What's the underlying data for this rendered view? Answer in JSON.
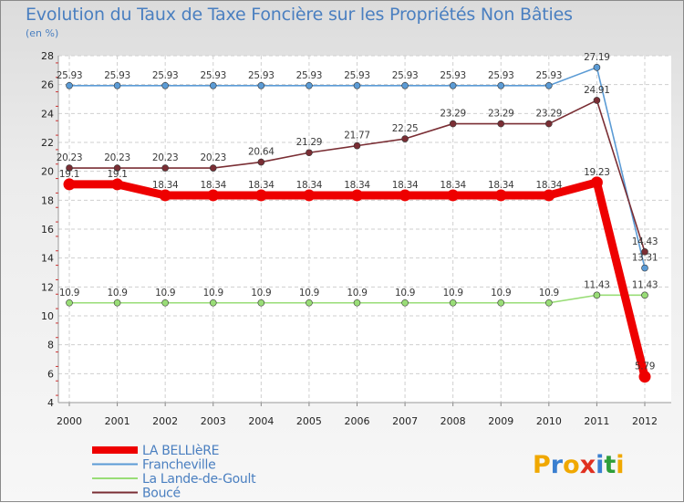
{
  "chart_data": {
    "type": "line",
    "title": "Evolution du Taux de Taxe Foncière sur les Propriétés Non Bâties",
    "unit_label": "(en %)",
    "xlabel": "",
    "ylabel": "(en %)",
    "categories": [
      "2000",
      "2001",
      "2002",
      "2003",
      "2004",
      "2005",
      "2006",
      "2007",
      "2008",
      "2009",
      "2010",
      "2011",
      "2012"
    ],
    "ylim": [
      4,
      28
    ],
    "yticks": [
      4,
      6,
      8,
      10,
      12,
      14,
      16,
      18,
      20,
      22,
      24,
      26,
      28
    ],
    "grid": true,
    "legend_position": "bottom-left",
    "series": [
      {
        "name": "LA BELLIèRE",
        "color": "#ee0000",
        "values": [
          19.1,
          19.1,
          18.34,
          18.34,
          18.34,
          18.34,
          18.34,
          18.34,
          18.34,
          18.34,
          18.34,
          19.23,
          5.79
        ],
        "labels": [
          "19.1",
          "19.1",
          "18.34",
          "18.34",
          "18.34",
          "18.34",
          "18.34",
          "18.34",
          "18.34",
          "18.34",
          "18.34",
          "19.23",
          "5.79"
        ]
      },
      {
        "name": "Francheville",
        "color": "#5b9bd5",
        "values": [
          25.93,
          25.93,
          25.93,
          25.93,
          25.93,
          25.93,
          25.93,
          25.93,
          25.93,
          25.93,
          25.93,
          27.19,
          13.31
        ],
        "labels": [
          "25.93",
          "25.93",
          "25.93",
          "25.93",
          "25.93",
          "25.93",
          "25.93",
          "25.93",
          "25.93",
          "25.93",
          "25.93",
          "27.19",
          "13.31"
        ]
      },
      {
        "name": "La Lande-de-Goult",
        "color": "#99dd77",
        "values": [
          10.9,
          10.9,
          10.9,
          10.9,
          10.9,
          10.9,
          10.9,
          10.9,
          10.9,
          10.9,
          10.9,
          11.43,
          11.43
        ],
        "labels": [
          "10.9",
          "10.9",
          "10.9",
          "10.9",
          "10.9",
          "10.9",
          "10.9",
          "10.9",
          "10.9",
          "10.9",
          "10.9",
          "11.43",
          "11.43"
        ]
      },
      {
        "name": "Boucé",
        "color": "#7a2e34",
        "values": [
          20.23,
          20.23,
          20.23,
          20.23,
          20.64,
          21.29,
          21.77,
          22.25,
          23.29,
          23.29,
          23.29,
          24.91,
          14.43
        ],
        "labels": [
          "20.23",
          "20.23",
          "20.23",
          "20.23",
          "20.64",
          "21.29",
          "21.77",
          "22.25",
          "23.29",
          "23.29",
          "23.29",
          "24.91",
          "14.43"
        ]
      }
    ]
  },
  "logo": {
    "text": "Proxiti"
  }
}
